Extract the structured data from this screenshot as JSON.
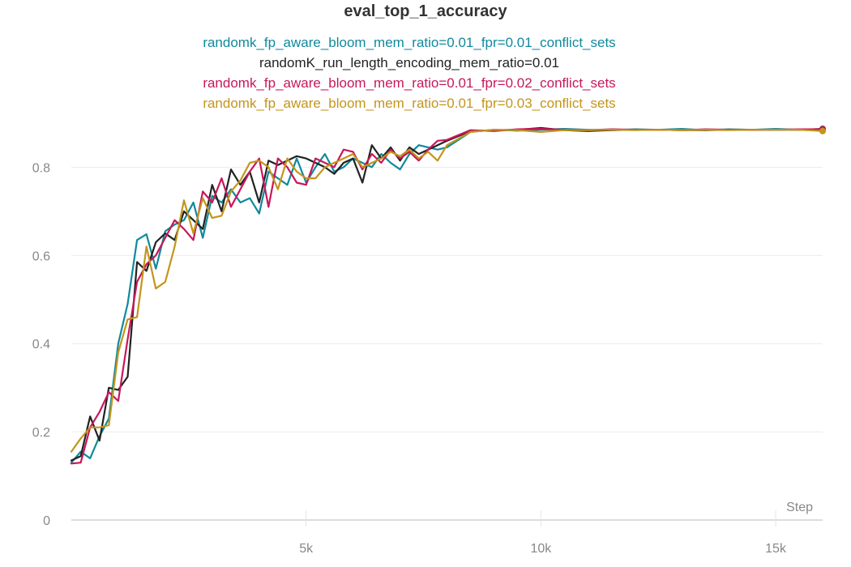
{
  "chart_data": {
    "type": "line",
    "title": "eval_top_1_accuracy",
    "xlabel": "Step",
    "ylabel": "",
    "xlim": [
      0,
      16000
    ],
    "ylim": [
      0,
      0.9
    ],
    "x_ticks": [
      5000,
      10000,
      15000
    ],
    "x_tick_labels": [
      "5k",
      "10k",
      "15k"
    ],
    "y_ticks": [
      0,
      0.2,
      0.4,
      0.6,
      0.8
    ],
    "y_tick_labels": [
      "0",
      "0.2",
      "0.4",
      "0.6",
      "0.8"
    ],
    "grid": true,
    "legend_position": "top-center",
    "x": [
      0,
      200,
      400,
      600,
      800,
      1000,
      1200,
      1400,
      1600,
      1800,
      2000,
      2200,
      2400,
      2600,
      2800,
      3000,
      3200,
      3400,
      3600,
      3800,
      4000,
      4200,
      4400,
      4600,
      4800,
      5000,
      5200,
      5400,
      5600,
      5800,
      6000,
      6200,
      6400,
      6600,
      6800,
      7000,
      7200,
      7400,
      7600,
      7800,
      8000,
      8500,
      9000,
      9500,
      10000,
      10500,
      11000,
      11500,
      12000,
      12500,
      13000,
      13500,
      14000,
      14500,
      15000,
      15500,
      16000
    ],
    "series": [
      {
        "name": "randomk_fp_aware_bloom_mem_ratio=0.01_fpr=0.01_conflict_sets",
        "color": "#0f8a9d",
        "values": [
          0.13,
          0.155,
          0.14,
          0.19,
          0.23,
          0.4,
          0.49,
          0.635,
          0.648,
          0.57,
          0.655,
          0.67,
          0.68,
          0.72,
          0.64,
          0.735,
          0.72,
          0.75,
          0.72,
          0.73,
          0.695,
          0.79,
          0.775,
          0.76,
          0.82,
          0.765,
          0.8,
          0.83,
          0.79,
          0.8,
          0.82,
          0.81,
          0.8,
          0.83,
          0.81,
          0.795,
          0.83,
          0.85,
          0.845,
          0.84,
          0.845,
          0.88,
          0.885,
          0.883,
          0.885,
          0.887,
          0.885,
          0.884,
          0.886,
          0.885,
          0.887,
          0.884,
          0.886,
          0.885,
          0.887,
          0.885,
          0.885
        ]
      },
      {
        "name": "randomK_run_length_encoding_mem_ratio=0.01",
        "color": "#222222",
        "values": [
          0.135,
          0.145,
          0.235,
          0.18,
          0.3,
          0.295,
          0.325,
          0.585,
          0.565,
          0.63,
          0.65,
          0.635,
          0.7,
          0.68,
          0.66,
          0.76,
          0.7,
          0.795,
          0.76,
          0.79,
          0.72,
          0.815,
          0.805,
          0.815,
          0.825,
          0.82,
          0.81,
          0.8,
          0.785,
          0.81,
          0.82,
          0.765,
          0.85,
          0.82,
          0.845,
          0.815,
          0.845,
          0.83,
          0.84,
          0.85,
          0.86,
          0.882,
          0.884,
          0.885,
          0.889,
          0.884,
          0.882,
          0.884,
          0.885,
          0.885,
          0.884,
          0.884,
          0.885,
          0.885,
          0.885,
          0.885,
          0.887
        ]
      },
      {
        "name": "randomk_fp_aware_bloom_mem_ratio=0.01_fpr=0.02_conflict_sets",
        "color": "#c8175a",
        "values": [
          0.128,
          0.13,
          0.21,
          0.245,
          0.29,
          0.27,
          0.41,
          0.54,
          0.58,
          0.6,
          0.64,
          0.68,
          0.66,
          0.635,
          0.745,
          0.72,
          0.775,
          0.71,
          0.75,
          0.79,
          0.82,
          0.71,
          0.82,
          0.8,
          0.765,
          0.76,
          0.82,
          0.81,
          0.8,
          0.84,
          0.835,
          0.795,
          0.83,
          0.81,
          0.84,
          0.82,
          0.835,
          0.815,
          0.84,
          0.86,
          0.862,
          0.884,
          0.882,
          0.886,
          0.887,
          0.885,
          0.884,
          0.886,
          0.885,
          0.885,
          0.884,
          0.886,
          0.885,
          0.885,
          0.885,
          0.886,
          0.886
        ]
      },
      {
        "name": "randomk_fp_aware_bloom_mem_ratio=0.01_fpr=0.03_conflict_sets",
        "color": "#c4951b",
        "values": [
          0.155,
          0.185,
          0.21,
          0.21,
          0.215,
          0.38,
          0.455,
          0.46,
          0.62,
          0.525,
          0.54,
          0.62,
          0.725,
          0.65,
          0.73,
          0.685,
          0.69,
          0.745,
          0.77,
          0.81,
          0.815,
          0.8,
          0.75,
          0.82,
          0.79,
          0.775,
          0.775,
          0.8,
          0.81,
          0.82,
          0.83,
          0.8,
          0.81,
          0.82,
          0.835,
          0.825,
          0.84,
          0.82,
          0.835,
          0.815,
          0.85,
          0.88,
          0.885,
          0.884,
          0.88,
          0.884,
          0.884,
          0.885,
          0.884,
          0.885,
          0.884,
          0.885,
          0.884,
          0.885,
          0.885,
          0.885,
          0.882
        ]
      }
    ]
  }
}
